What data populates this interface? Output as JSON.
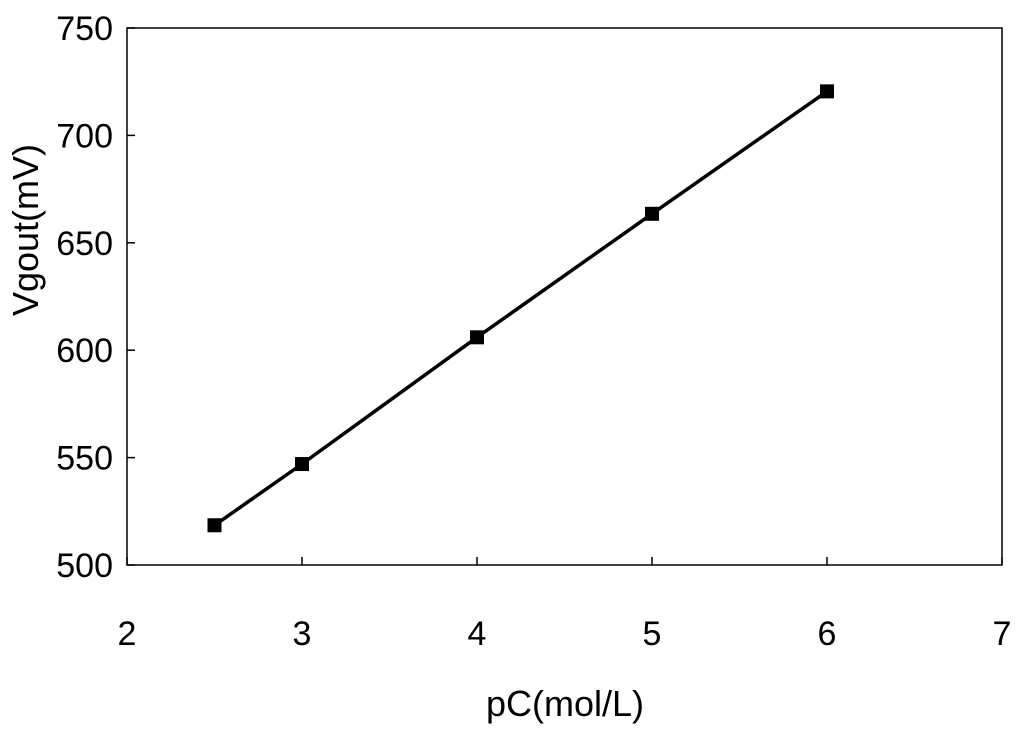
{
  "chart_data": {
    "type": "line",
    "xlabel": "pC(mol/L)",
    "ylabel": "Vgout(mV)",
    "xlim": [
      2,
      7
    ],
    "ylim": [
      500,
      750
    ],
    "xticks": [
      2,
      3,
      4,
      5,
      6,
      7
    ],
    "yticks": [
      500,
      550,
      600,
      650,
      700,
      750
    ],
    "grid": false,
    "series": [
      {
        "marker": "square",
        "color": "#000000",
        "x": [
          2.5,
          3,
          4,
          5,
          6
        ],
        "y": [
          518.5,
          547,
          606,
          663.5,
          720.5
        ]
      }
    ]
  }
}
